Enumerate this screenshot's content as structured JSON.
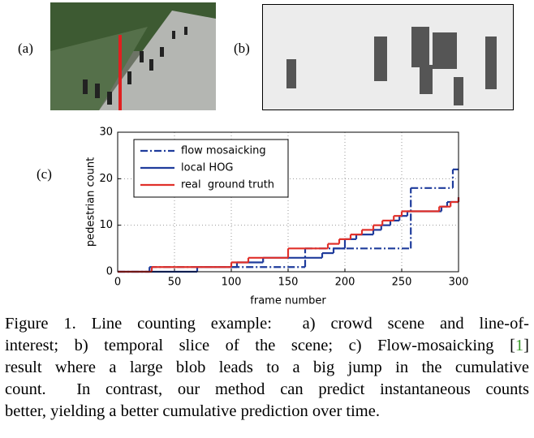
{
  "panels": {
    "a": "(a)",
    "b": "(b)",
    "c": "(c)"
  },
  "chart_data": {
    "type": "step",
    "xlabel": "frame number",
    "ylabel": "pedestrian count",
    "xlim": [
      0,
      300
    ],
    "ylim": [
      0,
      30
    ],
    "xticks": [
      0,
      50,
      100,
      150,
      200,
      250,
      300
    ],
    "yticks": [
      0,
      10,
      20,
      30
    ],
    "grid": true,
    "legend": "upper left",
    "series": [
      {
        "name": "flow mosaicking",
        "color": "#1f3c9c",
        "style": "dashdot",
        "x": [
          0,
          28,
          165,
          258,
          295,
          300
        ],
        "values": [
          0,
          1,
          5,
          18,
          22,
          22
        ]
      },
      {
        "name": "local HOG",
        "color": "#1f3c9c",
        "style": "solid",
        "x": [
          0,
          70,
          105,
          128,
          180,
          190,
          200,
          210,
          225,
          232,
          240,
          248,
          255,
          285,
          290,
          300
        ],
        "values": [
          0,
          1,
          2,
          3,
          4,
          5,
          7,
          8,
          9,
          10,
          11,
          12,
          13,
          14,
          15,
          16
        ]
      },
      {
        "name": "real  ground truth",
        "color": "#e0302a",
        "style": "solid",
        "x": [
          0,
          30,
          100,
          115,
          150,
          185,
          195,
          205,
          215,
          225,
          233,
          243,
          250,
          283,
          293,
          300
        ],
        "values": [
          0,
          1,
          2,
          3,
          5,
          6,
          7,
          8,
          9,
          10,
          11,
          12,
          13,
          14,
          15,
          16
        ]
      }
    ]
  },
  "caption": {
    "lines": [
      "Figure 1. Line counting example:  a) crowd scene and line-of-",
      {
        "before": "interest; b) temporal slice of the scene; c) Flow-mosaicking [",
        "ref": "1",
        "after": "]"
      },
      "result where a large blob leads to a big jump in the cumulative",
      "count.  In contrast, our method can predict instantaneous counts",
      "better, yielding a better cumulative prediction over time."
    ]
  }
}
